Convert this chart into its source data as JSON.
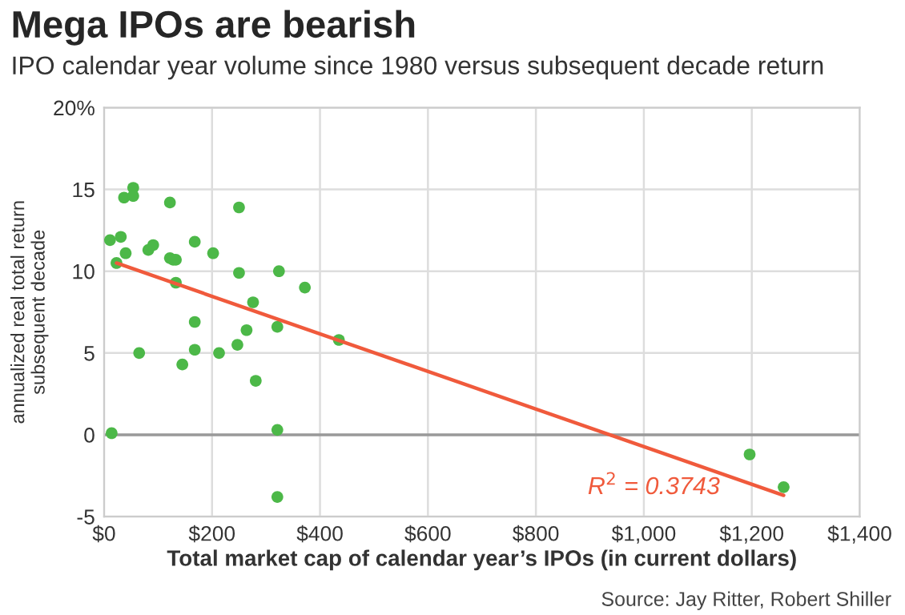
{
  "chart_data": {
    "type": "scatter",
    "title": "Mega IPOs are bearish",
    "subtitle": "IPO calendar year volume since 1980 versus subsequent decade return",
    "xlabel": "Total market cap of calendar year’s IPOs (in current dollars)",
    "ylabel": "annualized real total return\nsubsequent decade",
    "annotations": [
      "Source: Jay Ritter, Robert Shiller",
      "R$^{2}$ = 0.3743"
    ],
    "series": [
      {
        "marker": "circle",
        "color": "#4cb848",
        "x": [
          54,
          37,
          54,
          122,
          250,
          11,
          31,
          40,
          82,
          91,
          168,
          202,
          122,
          133,
          128,
          23,
          133,
          250,
          324,
          372,
          276,
          168,
          264,
          321,
          435,
          65,
          168,
          213,
          247,
          145,
          281,
          321,
          321,
          14,
          1196,
          1259
        ],
        "values": [
          15.1,
          14.5,
          14.6,
          14.2,
          13.9,
          11.9,
          12.1,
          11.1,
          11.3,
          11.6,
          11.8,
          11.1,
          10.8,
          10.7,
          10.7,
          10.5,
          9.3,
          9.9,
          10.0,
          9.0,
          8.1,
          6.9,
          6.4,
          6.6,
          5.8,
          5.0,
          5.2,
          5.0,
          5.5,
          4.3,
          3.3,
          0.3,
          -3.8,
          0.1,
          -1.2,
          -3.2
        ]
      },
      {
        "type": "line",
        "color": "#f05a3c",
        "x": [
          23,
          1259
        ],
        "values": [
          10.5,
          -3.7
        ]
      }
    ],
    "xlim": [
      0,
      1400
    ],
    "ylim": [
      -5,
      20
    ],
    "xticks": [
      {
        "value": 0,
        "label": "$0"
      },
      {
        "value": 200,
        "label": "$200"
      },
      {
        "value": 400,
        "label": "$400"
      },
      {
        "value": 600,
        "label": "$600"
      },
      {
        "value": 800,
        "label": "$800"
      },
      {
        "value": 1000,
        "label": "$1,000"
      },
      {
        "value": 1200,
        "label": "$1,200"
      },
      {
        "value": 1400,
        "label": "$1,400"
      }
    ],
    "yticks": [
      -5,
      0,
      5,
      10,
      15,
      {
        "value": 20,
        "label": "20%"
      }
    ],
    "ref_lines": [
      {
        "axis": "y",
        "value": 0,
        "color": "#999999"
      }
    ],
    "grid": true
  }
}
